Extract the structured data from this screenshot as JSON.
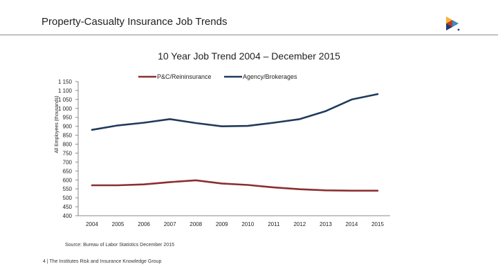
{
  "header": {
    "title": "Property-Casualty Insurance Job Trends"
  },
  "logo": {
    "icon": "institutes-logo-icon",
    "colors": [
      "#1f3a6e",
      "#c0392b",
      "#f2b632",
      "#3a8fc9"
    ]
  },
  "chart_data": {
    "type": "line",
    "title": "10 Year Job Trend 2004 – December 2015",
    "xlabel": "",
    "ylabel": "All Employees (thousands)",
    "categories": [
      "2004",
      "2005",
      "2006",
      "2007",
      "2008",
      "2009",
      "2010",
      "2011",
      "2012",
      "2013",
      "2014",
      "2015"
    ],
    "ylim": [
      400,
      1150
    ],
    "yticks": [
      400,
      450,
      500,
      550,
      600,
      650,
      700,
      750,
      800,
      850,
      900,
      950,
      "1 000",
      "1 050",
      "1 100",
      "1 150"
    ],
    "yticks_values": [
      400,
      450,
      500,
      550,
      600,
      650,
      700,
      750,
      800,
      850,
      900,
      950,
      1000,
      1050,
      1100,
      1150
    ],
    "grid": false,
    "legend_position": "top",
    "series": [
      {
        "name": "P&C/Reininsurance",
        "color": "#8b2e2e",
        "values": [
          570,
          570,
          575,
          588,
          598,
          580,
          572,
          558,
          548,
          542,
          540,
          540
        ]
      },
      {
        "name": "Agency/Brokerages",
        "color": "#1f3a5c",
        "values": [
          880,
          905,
          920,
          940,
          918,
          900,
          902,
          920,
          940,
          985,
          1050,
          1080
        ]
      }
    ]
  },
  "source": "Source: Bureau of Labor Statistics December 2015",
  "footer": "4 | The Institutes Risk and Insurance Knowledge Group"
}
